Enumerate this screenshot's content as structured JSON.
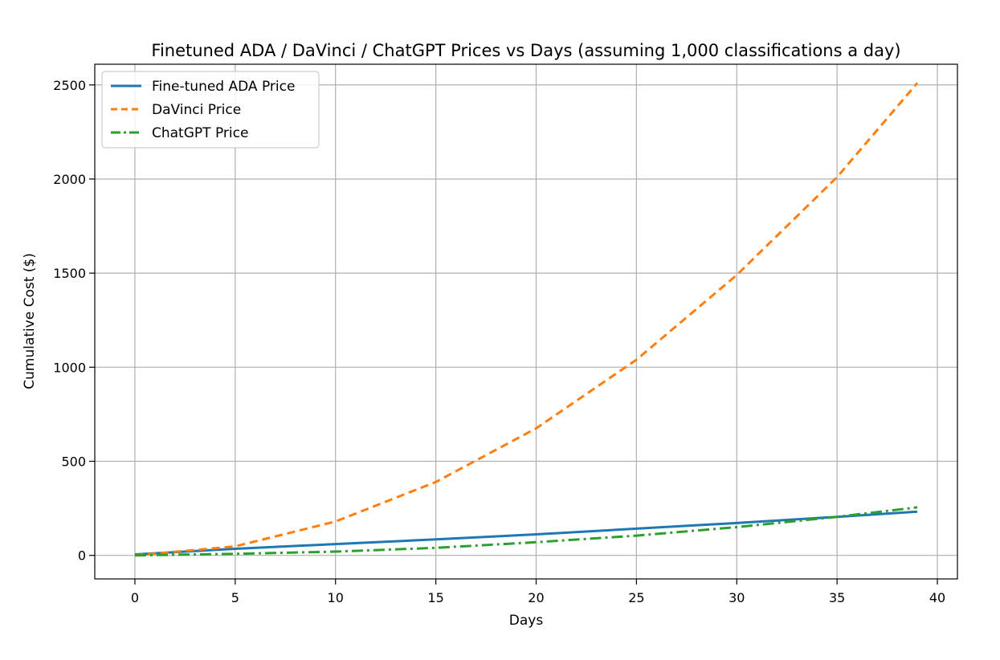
{
  "chart_data": {
    "type": "line",
    "title": "Finetuned ADA / DaVinci / ChatGPT Prices vs Days (assuming 1,000 classifications a day)",
    "xlabel": "Days",
    "ylabel": "Cumulative Cost ($)",
    "xlim": [
      -2,
      41
    ],
    "ylim": [
      -125,
      2610
    ],
    "xticks": [
      0,
      5,
      10,
      15,
      20,
      25,
      30,
      35,
      40
    ],
    "yticks": [
      0,
      500,
      1000,
      1500,
      2000,
      2500
    ],
    "grid": true,
    "legend_position": "top-left",
    "x": [
      0,
      5,
      10,
      15,
      20,
      25,
      30,
      35,
      39
    ],
    "series": [
      {
        "name": "Fine-tuned ADA Price",
        "color": "#1f77b4",
        "style": "solid",
        "values": [
          5,
          35,
          60,
          85,
          112,
          142,
          172,
          205,
          232
        ]
      },
      {
        "name": "DaVinci Price",
        "color": "#ff7f0e",
        "style": "dashed",
        "values": [
          0,
          48,
          180,
          390,
          675,
          1040,
          1490,
          2010,
          2510
        ]
      },
      {
        "name": "ChatGPT Price",
        "color": "#2ca02c",
        "style": "dashdot",
        "values": [
          0,
          8,
          20,
          40,
          70,
          105,
          150,
          205,
          255
        ]
      }
    ]
  }
}
